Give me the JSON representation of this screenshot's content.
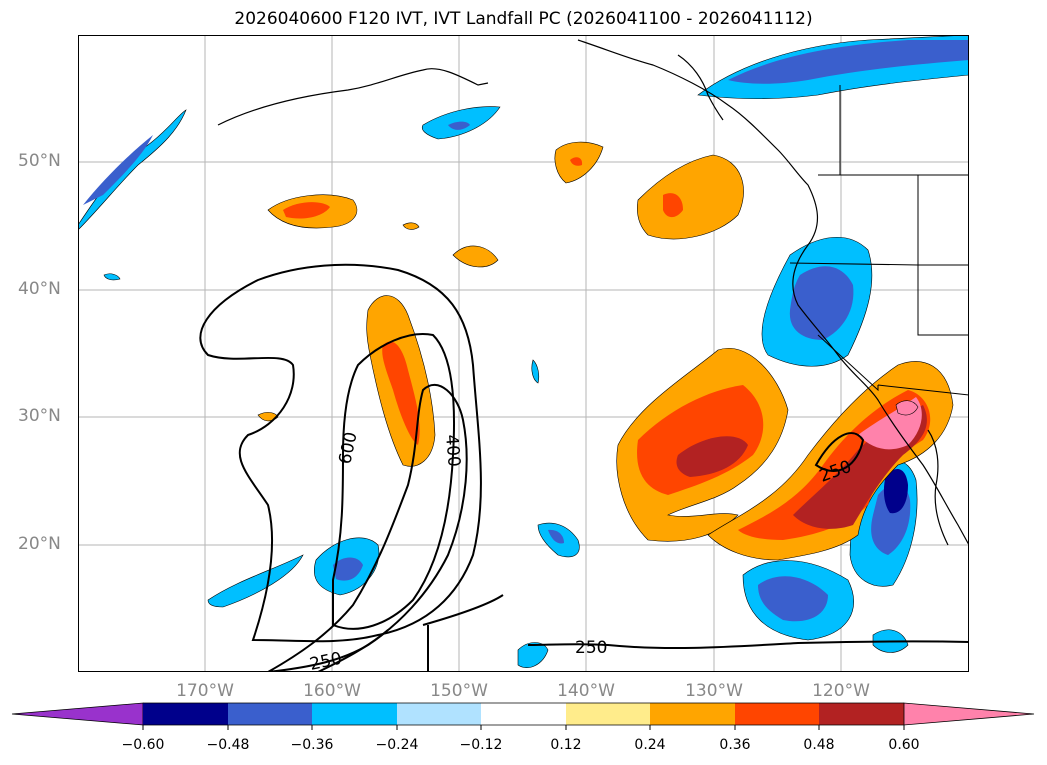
{
  "title": "2026040600 F120 IVT, IVT Landfall PC (2026041100 - 2026041112)",
  "lat_labels": [
    "50°N",
    "40°N",
    "30°N",
    "20°N"
  ],
  "lon_labels": [
    "170°W",
    "160°W",
    "150°W",
    "140°W",
    "130°W",
    "120°W"
  ],
  "contour_labels": [
    "600",
    "400",
    "250",
    "250",
    "250"
  ],
  "colorbar": {
    "ticks": [
      "−0.60",
      "−0.48",
      "−0.36",
      "−0.24",
      "−0.12",
      "0.12",
      "0.24",
      "0.36",
      "0.48",
      "0.60"
    ],
    "colors": [
      "#9932cc",
      "#00008b",
      "#3a5fcd",
      "#00bfff",
      "#b0e2ff",
      "#ffffff",
      "#ffec8b",
      "#ffa500",
      "#ff4500",
      "#b22222",
      "#ff82ab"
    ]
  }
}
